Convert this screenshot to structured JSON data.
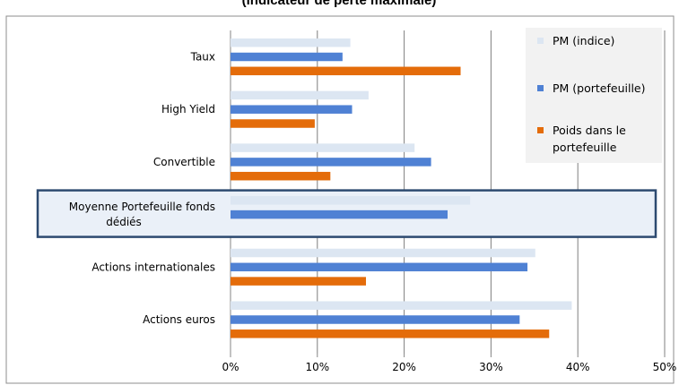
{
  "chart_data": {
    "type": "bar",
    "orientation": "horizontal",
    "title": "(indicateur de perte maximale)",
    "categories": [
      "Taux",
      "High Yield",
      "Convertible",
      "Moyenne Portefeuille fonds dédiés",
      "Actions internationales",
      "Actions euros"
    ],
    "category_lines": [
      [
        "Taux"
      ],
      [
        "High Yield"
      ],
      [
        "Convertible"
      ],
      [
        "Moyenne Portefeuille fonds",
        "dédiés"
      ],
      [
        "Actions internationales"
      ],
      [
        "Actions euros"
      ]
    ],
    "highlighted_category": "Moyenne Portefeuille fonds dédiés",
    "series": [
      {
        "name": "PM (indice)",
        "color": "#dce6f2",
        "values": [
          0.138,
          0.159,
          0.212,
          0.276,
          0.351,
          0.393
        ]
      },
      {
        "name": "PM (portefeuille)",
        "color": "#4f81d4",
        "values": [
          0.129,
          0.14,
          0.231,
          0.25,
          0.342,
          0.333
        ]
      },
      {
        "name": "Poids dans le portefeuille",
        "color": "#e46c0a",
        "values": [
          0.265,
          0.097,
          0.115,
          null,
          0.156,
          0.367
        ]
      }
    ],
    "legend_lines": [
      [
        "PM (indice)"
      ],
      [
        "PM (portefeuille)"
      ],
      [
        "Poids dans le",
        "portefeuille"
      ]
    ],
    "xlim": [
      0,
      0.5
    ],
    "x_ticks": [
      "0%",
      "10%",
      "20%",
      "30%",
      "40%",
      "50%"
    ],
    "x_tick_values": [
      0,
      0.1,
      0.2,
      0.3,
      0.4,
      0.5
    ],
    "grid": true,
    "legend_position": "top-right"
  }
}
